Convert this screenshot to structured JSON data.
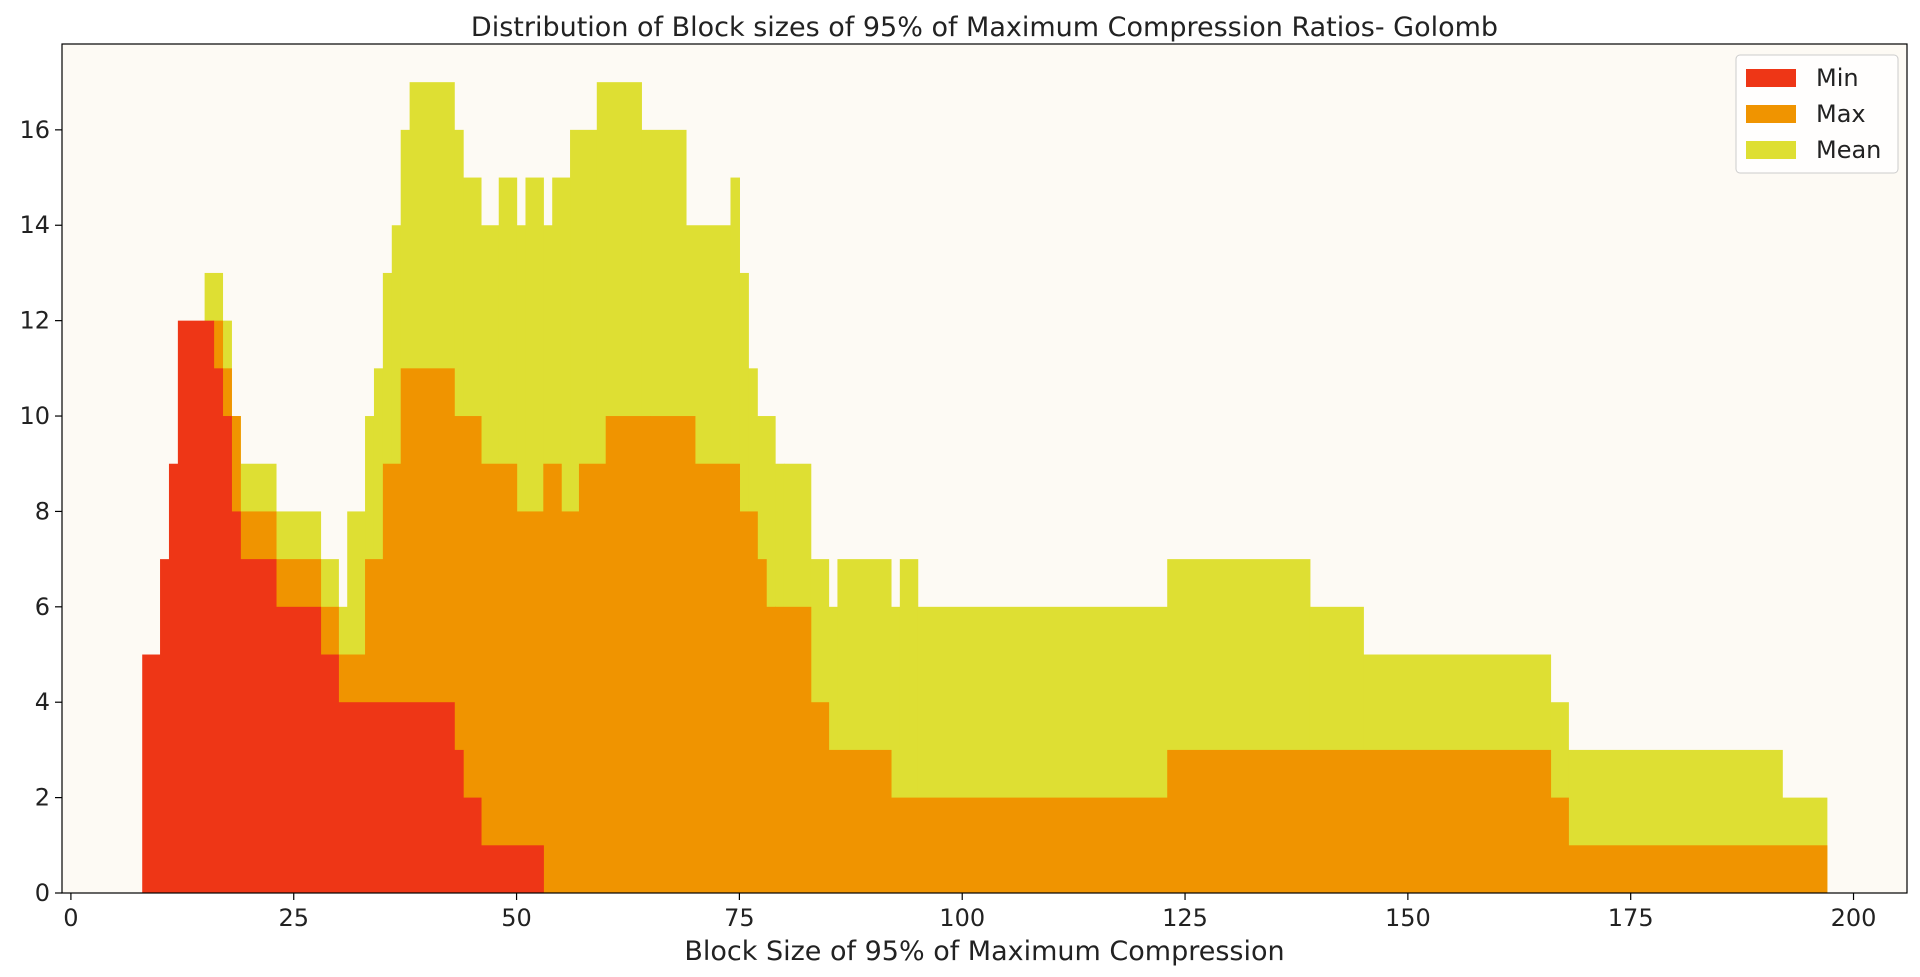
{
  "chart_data": {
    "type": "bar",
    "title": "Distribution of Block sizes of 95% of Maximum Compression Ratios- Golomb",
    "xlabel": "Block Size of 95% of Maximum Compression",
    "ylabel": "",
    "xlim": [
      -1,
      206
    ],
    "ylim": [
      0,
      17.8
    ],
    "xticks": [
      0,
      25,
      50,
      75,
      100,
      125,
      150,
      175,
      200
    ],
    "yticks": [
      0,
      2,
      4,
      6,
      8,
      10,
      12,
      14,
      16
    ],
    "grid": false,
    "legend_position": "top-right",
    "background_color": "#fdfaf4",
    "series": [
      {
        "name": "Min",
        "color": "#ee3616",
        "steps": [
          [
            8,
            10,
            5
          ],
          [
            10,
            11,
            7
          ],
          [
            11,
            12,
            9
          ],
          [
            12,
            16,
            12
          ],
          [
            16,
            17,
            11
          ],
          [
            17,
            18,
            10
          ],
          [
            18,
            19,
            8
          ],
          [
            19,
            23,
            7
          ],
          [
            23,
            28,
            6
          ],
          [
            28,
            30,
            5
          ],
          [
            30,
            43,
            4
          ],
          [
            43,
            44,
            3
          ],
          [
            44,
            46,
            2
          ],
          [
            46,
            53,
            1
          ]
        ]
      },
      {
        "name": "Max",
        "color": "#f09400",
        "steps": [
          [
            16,
            17,
            12
          ],
          [
            17,
            18,
            11
          ],
          [
            18,
            19,
            10
          ],
          [
            19,
            23,
            8
          ],
          [
            23,
            28,
            7
          ],
          [
            28,
            30,
            6
          ],
          [
            30,
            33,
            5
          ],
          [
            33,
            35,
            7
          ],
          [
            35,
            37,
            9
          ],
          [
            37,
            43,
            11
          ],
          [
            43,
            46,
            10
          ],
          [
            46,
            50,
            9
          ],
          [
            50,
            53,
            8
          ],
          [
            53,
            55,
            9
          ],
          [
            55,
            57,
            8
          ],
          [
            57,
            60,
            9
          ],
          [
            60,
            65,
            10
          ],
          [
            65,
            70,
            10
          ],
          [
            70,
            75,
            9
          ],
          [
            75,
            77,
            8
          ],
          [
            77,
            78,
            7
          ],
          [
            78,
            79,
            6
          ],
          [
            79,
            83,
            6
          ],
          [
            83,
            85,
            4
          ],
          [
            85,
            92,
            3
          ],
          [
            92,
            123,
            2
          ],
          [
            123,
            166,
            3
          ],
          [
            166,
            168,
            2
          ],
          [
            168,
            197,
            1
          ]
        ]
      },
      {
        "name": "Mean",
        "color": "#dedf33",
        "steps": [
          [
            15,
            17,
            13
          ],
          [
            17,
            18,
            12
          ],
          [
            18,
            19,
            10
          ],
          [
            19,
            23,
            9
          ],
          [
            23,
            28,
            8
          ],
          [
            28,
            30,
            7
          ],
          [
            30,
            31,
            6
          ],
          [
            31,
            33,
            8
          ],
          [
            33,
            34,
            10
          ],
          [
            34,
            35,
            11
          ],
          [
            35,
            36,
            13
          ],
          [
            36,
            37,
            14
          ],
          [
            37,
            38,
            16
          ],
          [
            38,
            43,
            17
          ],
          [
            43,
            44,
            16
          ],
          [
            44,
            46,
            15
          ],
          [
            46,
            48,
            14
          ],
          [
            48,
            50,
            15
          ],
          [
            50,
            51,
            14
          ],
          [
            51,
            53,
            15
          ],
          [
            53,
            54,
            14
          ],
          [
            54,
            56,
            15
          ],
          [
            56,
            59,
            16
          ],
          [
            59,
            64,
            17
          ],
          [
            64,
            69,
            16
          ],
          [
            69,
            74,
            14
          ],
          [
            74,
            75,
            15
          ],
          [
            75,
            76,
            13
          ],
          [
            76,
            77,
            11
          ],
          [
            77,
            79,
            10
          ],
          [
            79,
            80,
            9
          ],
          [
            80,
            83,
            9
          ],
          [
            83,
            85,
            7
          ],
          [
            85,
            86,
            6
          ],
          [
            86,
            92,
            7
          ],
          [
            92,
            93,
            6
          ],
          [
            93,
            95,
            7
          ],
          [
            95,
            123,
            6
          ],
          [
            123,
            139,
            7
          ],
          [
            139,
            145,
            6
          ],
          [
            145,
            166,
            5
          ],
          [
            166,
            168,
            4
          ],
          [
            168,
            192,
            3
          ],
          [
            192,
            197,
            2
          ]
        ]
      }
    ]
  }
}
